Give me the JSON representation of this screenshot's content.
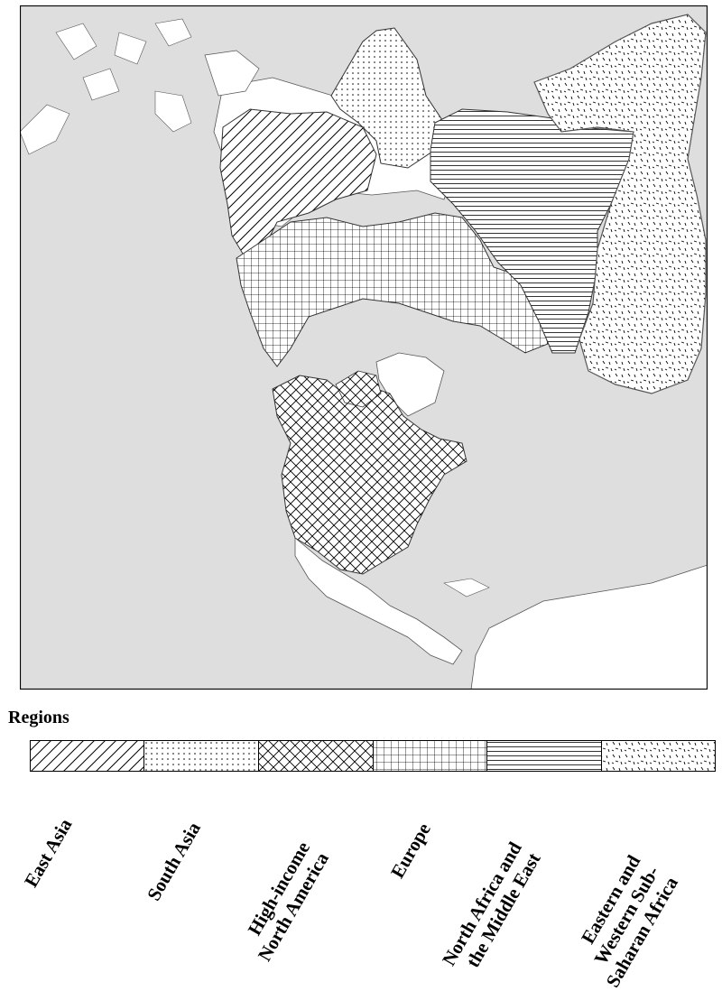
{
  "legend": {
    "title": "Regions",
    "items": [
      {
        "id": "east-asia",
        "lines": [
          "East Asia"
        ],
        "pattern": "diagonal-lines"
      },
      {
        "id": "south-asia",
        "lines": [
          "South Asia"
        ],
        "pattern": "dots"
      },
      {
        "id": "high-income-north-america",
        "lines": [
          "High-income",
          "North America"
        ],
        "pattern": "crosshatch-diagonal"
      },
      {
        "id": "europe",
        "lines": [
          "Europe"
        ],
        "pattern": "grid"
      },
      {
        "id": "north-africa-middle-east",
        "lines": [
          "North Africa and",
          "the Middle East"
        ],
        "pattern": "horizontal-lines"
      },
      {
        "id": "eastern-western-ssa",
        "lines": [
          "Eastern and",
          "Western Sub-",
          "Saharan Africa"
        ],
        "pattern": "dashes"
      }
    ]
  },
  "colors": {
    "ocean": "#dedede",
    "land": "#ffffff",
    "border": "#555555",
    "frame": "#000000"
  }
}
